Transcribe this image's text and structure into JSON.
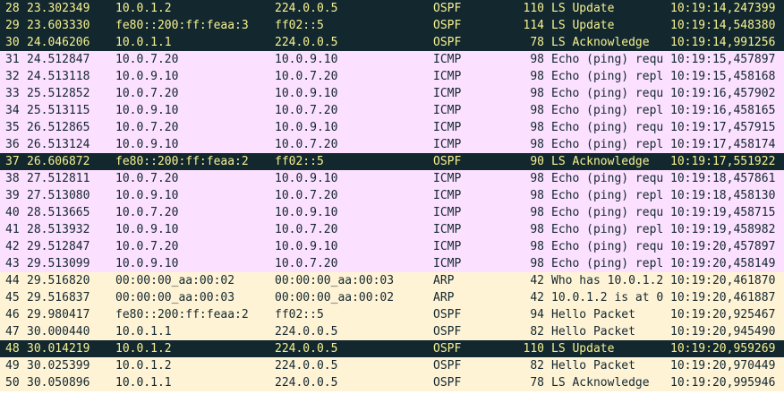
{
  "packets": [
    {
      "no": "28",
      "time": "23.302349",
      "src": "10.0.1.2",
      "dst": "224.0.0.5",
      "proto": "OSPF",
      "len": "110",
      "info": "LS Update",
      "ts": "10:19:14,247399",
      "style": "dark"
    },
    {
      "no": "29",
      "time": "23.603330",
      "src": "fe80::200:ff:feaa:3",
      "dst": "ff02::5",
      "proto": "OSPF",
      "len": "114",
      "info": "LS Update",
      "ts": "10:19:14,548380",
      "style": "dark"
    },
    {
      "no": "30",
      "time": "24.046206",
      "src": "10.0.1.1",
      "dst": "224.0.0.5",
      "proto": "OSPF",
      "len": "78",
      "info": "LS Acknowledge",
      "ts": "10:19:14,991256",
      "style": "dark"
    },
    {
      "no": "31",
      "time": "24.512847",
      "src": "10.0.7.20",
      "dst": "10.0.9.10",
      "proto": "ICMP",
      "len": "98",
      "info": "Echo (ping) requ",
      "ts": "10:19:15,457897",
      "style": "icmp"
    },
    {
      "no": "32",
      "time": "24.513118",
      "src": "10.0.9.10",
      "dst": "10.0.7.20",
      "proto": "ICMP",
      "len": "98",
      "info": "Echo (ping) repl",
      "ts": "10:19:15,458168",
      "style": "icmp"
    },
    {
      "no": "33",
      "time": "25.512852",
      "src": "10.0.7.20",
      "dst": "10.0.9.10",
      "proto": "ICMP",
      "len": "98",
      "info": "Echo (ping) requ",
      "ts": "10:19:16,457902",
      "style": "icmp"
    },
    {
      "no": "34",
      "time": "25.513115",
      "src": "10.0.9.10",
      "dst": "10.0.7.20",
      "proto": "ICMP",
      "len": "98",
      "info": "Echo (ping) repl",
      "ts": "10:19:16,458165",
      "style": "icmp"
    },
    {
      "no": "35",
      "time": "26.512865",
      "src": "10.0.7.20",
      "dst": "10.0.9.10",
      "proto": "ICMP",
      "len": "98",
      "info": "Echo (ping) requ",
      "ts": "10:19:17,457915",
      "style": "icmp"
    },
    {
      "no": "36",
      "time": "26.513124",
      "src": "10.0.9.10",
      "dst": "10.0.7.20",
      "proto": "ICMP",
      "len": "98",
      "info": "Echo (ping) repl",
      "ts": "10:19:17,458174",
      "style": "icmp"
    },
    {
      "no": "37",
      "time": "26.606872",
      "src": "fe80::200:ff:feaa:2",
      "dst": "ff02::5",
      "proto": "OSPF",
      "len": "90",
      "info": "LS Acknowledge",
      "ts": "10:19:17,551922",
      "style": "dark"
    },
    {
      "no": "38",
      "time": "27.512811",
      "src": "10.0.7.20",
      "dst": "10.0.9.10",
      "proto": "ICMP",
      "len": "98",
      "info": "Echo (ping) requ",
      "ts": "10:19:18,457861",
      "style": "icmp"
    },
    {
      "no": "39",
      "time": "27.513080",
      "src": "10.0.9.10",
      "dst": "10.0.7.20",
      "proto": "ICMP",
      "len": "98",
      "info": "Echo (ping) repl",
      "ts": "10:19:18,458130",
      "style": "icmp"
    },
    {
      "no": "40",
      "time": "28.513665",
      "src": "10.0.7.20",
      "dst": "10.0.9.10",
      "proto": "ICMP",
      "len": "98",
      "info": "Echo (ping) requ",
      "ts": "10:19:19,458715",
      "style": "icmp"
    },
    {
      "no": "41",
      "time": "28.513932",
      "src": "10.0.9.10",
      "dst": "10.0.7.20",
      "proto": "ICMP",
      "len": "98",
      "info": "Echo (ping) repl",
      "ts": "10:19:19,458982",
      "style": "icmp"
    },
    {
      "no": "42",
      "time": "29.512847",
      "src": "10.0.7.20",
      "dst": "10.0.9.10",
      "proto": "ICMP",
      "len": "98",
      "info": "Echo (ping) requ",
      "ts": "10:19:20,457897",
      "style": "icmp"
    },
    {
      "no": "43",
      "time": "29.513099",
      "src": "10.0.9.10",
      "dst": "10.0.7.20",
      "proto": "ICMP",
      "len": "98",
      "info": "Echo (ping) repl",
      "ts": "10:19:20,458149",
      "style": "icmp"
    },
    {
      "no": "44",
      "time": "29.516820",
      "src": "00:00:00_aa:00:02",
      "dst": "00:00:00_aa:00:03",
      "proto": "ARP",
      "len": "42",
      "info": "Who has 10.0.1.2",
      "ts": "10:19:20,461870",
      "style": "arp"
    },
    {
      "no": "45",
      "time": "29.516837",
      "src": "00:00:00_aa:00:03",
      "dst": "00:00:00_aa:00:02",
      "proto": "ARP",
      "len": "42",
      "info": "10.0.1.2 is at 0",
      "ts": "10:19:20,461887",
      "style": "arp"
    },
    {
      "no": "46",
      "time": "29.980417",
      "src": "fe80::200:ff:feaa:2",
      "dst": "ff02::5",
      "proto": "OSPF",
      "len": "94",
      "info": "Hello Packet",
      "ts": "10:19:20,925467",
      "style": "ospf"
    },
    {
      "no": "47",
      "time": "30.000440",
      "src": "10.0.1.1",
      "dst": "224.0.0.5",
      "proto": "OSPF",
      "len": "82",
      "info": "Hello Packet",
      "ts": "10:19:20,945490",
      "style": "ospf"
    },
    {
      "no": "48",
      "time": "30.014219",
      "src": "10.0.1.2",
      "dst": "224.0.0.5",
      "proto": "OSPF",
      "len": "110",
      "info": "LS Update",
      "ts": "10:19:20,959269",
      "style": "dark"
    },
    {
      "no": "49",
      "time": "30.025399",
      "src": "10.0.1.2",
      "dst": "224.0.0.5",
      "proto": "OSPF",
      "len": "82",
      "info": "Hello Packet",
      "ts": "10:19:20,970449",
      "style": "ospf"
    },
    {
      "no": "50",
      "time": "30.050896",
      "src": "10.0.1.1",
      "dst": "224.0.0.5",
      "proto": "OSPF",
      "len": "78",
      "info": "LS Acknowledge",
      "ts": "10:19:20,995946",
      "style": "ospf"
    }
  ],
  "colors": {
    "dark_bg": "#12272e",
    "dark_fg": "#f7f28f",
    "icmp_bg": "#fce0ff",
    "arp_ospf_bg": "#fff3d6",
    "light_fg": "#12272e"
  }
}
